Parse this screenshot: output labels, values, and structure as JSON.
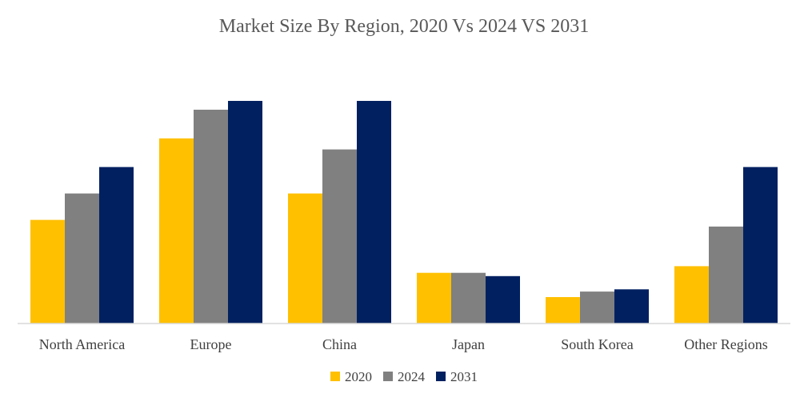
{
  "chart_data": {
    "type": "bar",
    "title": "Market Size By Region, 2020 Vs 2024 VS 2031",
    "xlabel": "",
    "ylabel": "",
    "ylim": [
      0,
      100
    ],
    "grid": false,
    "legend_position": "bottom-center",
    "categories": [
      "North America",
      "Europe",
      "China",
      "Japan",
      "South Korea",
      "Other Regions"
    ],
    "series": [
      {
        "name": "2020",
        "color": "#FFC000",
        "values": [
          47,
          84,
          59,
          23,
          12,
          26
        ]
      },
      {
        "name": "2024",
        "color": "#808080",
        "values": [
          59,
          97,
          79,
          23,
          14.5,
          44
        ]
      },
      {
        "name": "2031",
        "color": "#002060",
        "values": [
          71,
          101,
          101,
          21.5,
          15.5,
          71
        ]
      }
    ]
  }
}
